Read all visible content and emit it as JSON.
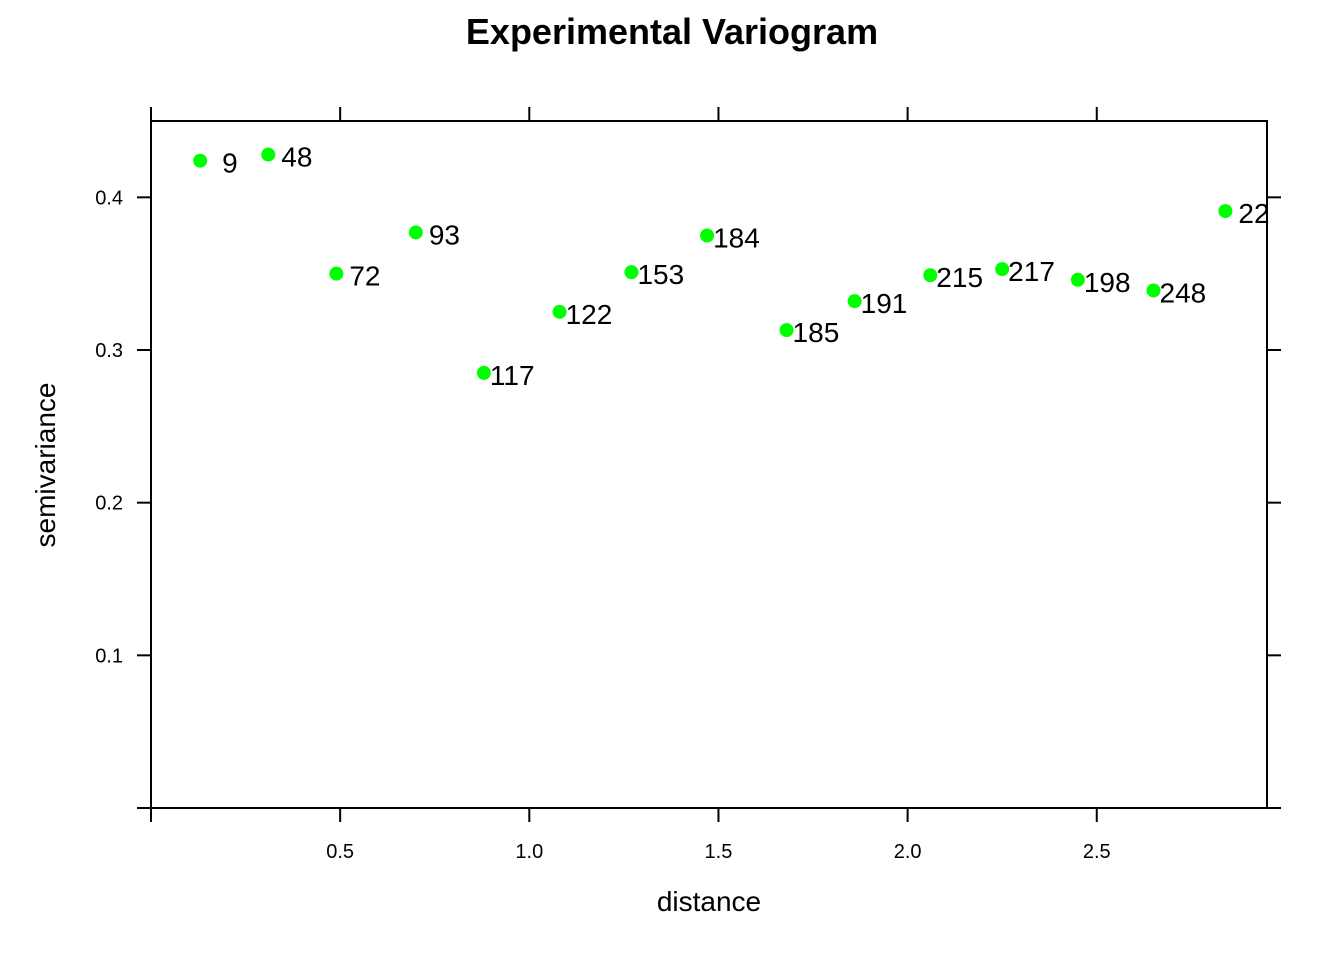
{
  "chart_data": {
    "type": "scatter",
    "title": "Experimental Variogram",
    "xlabel": "distance",
    "ylabel": "semivariance",
    "xlim": [
      0,
      2.95
    ],
    "ylim": [
      0,
      0.45
    ],
    "x_ticks": [
      0.5,
      1.0,
      1.5,
      2.0,
      2.5
    ],
    "x_tick_labels": [
      "0.5",
      "1.0",
      "1.5",
      "2.0",
      "2.5"
    ],
    "y_ticks": [
      0.1,
      0.2,
      0.3,
      0.4
    ],
    "y_tick_labels": [
      "0.1",
      "0.2",
      "0.3",
      "0.4"
    ],
    "point_color": "#00ff00",
    "grid": false,
    "points": [
      {
        "x": 0.13,
        "y": 0.424,
        "label": "9"
      },
      {
        "x": 0.31,
        "y": 0.428,
        "label": "48"
      },
      {
        "x": 0.49,
        "y": 0.35,
        "label": "72"
      },
      {
        "x": 0.7,
        "y": 0.377,
        "label": "93"
      },
      {
        "x": 0.88,
        "y": 0.285,
        "label": "117"
      },
      {
        "x": 1.08,
        "y": 0.325,
        "label": "122"
      },
      {
        "x": 1.27,
        "y": 0.351,
        "label": "153"
      },
      {
        "x": 1.47,
        "y": 0.375,
        "label": "184"
      },
      {
        "x": 1.68,
        "y": 0.313,
        "label": "185"
      },
      {
        "x": 1.86,
        "y": 0.332,
        "label": "191"
      },
      {
        "x": 2.06,
        "y": 0.349,
        "label": "215"
      },
      {
        "x": 2.25,
        "y": 0.353,
        "label": "217"
      },
      {
        "x": 2.45,
        "y": 0.346,
        "label": "198"
      },
      {
        "x": 2.65,
        "y": 0.339,
        "label": "248"
      },
      {
        "x": 2.84,
        "y": 0.391,
        "label": "22"
      }
    ]
  }
}
